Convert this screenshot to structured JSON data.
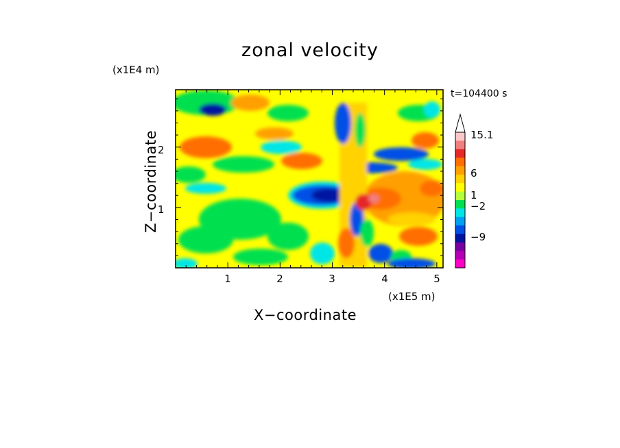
{
  "chart_data": {
    "type": "heatmap",
    "title": "zonal velocity",
    "xlabel": "X−coordinate",
    "ylabel": "Z−coordinate",
    "x_unit": "(x1E5 m)",
    "y_unit": "(x1E4 m)",
    "time_label": "t=104400 s",
    "xlim": [
      0,
      5.12
    ],
    "ylim": [
      0,
      2.95
    ],
    "x_ticks": [
      "1",
      "2",
      "3",
      "4",
      "5"
    ],
    "y_ticks": [
      "1",
      "2"
    ],
    "colorbar": {
      "levels_shown": [
        "15.1",
        "6",
        "1",
        "−2",
        "−9"
      ],
      "colors_top_to_bottom": [
        "#fac8c8",
        "#f08080",
        "#e62828",
        "#ff6e00",
        "#ffa000",
        "#ffd200",
        "#ffff00",
        "#b4ff3c",
        "#00e050",
        "#00e6e6",
        "#00a0f0",
        "#0050e6",
        "#0014a0",
        "#7800a0",
        "#b400b4",
        "#ff00c8"
      ]
    },
    "field_description_regions": [
      {
        "x": 3.0,
        "z": 1.2,
        "value": -9
      },
      {
        "x": 3.9,
        "z": 1.2,
        "value": 6
      },
      {
        "x": 1.2,
        "z": 0.8,
        "value": -1
      },
      {
        "x": 4.4,
        "z": 2.1,
        "value": 1
      }
    ]
  }
}
